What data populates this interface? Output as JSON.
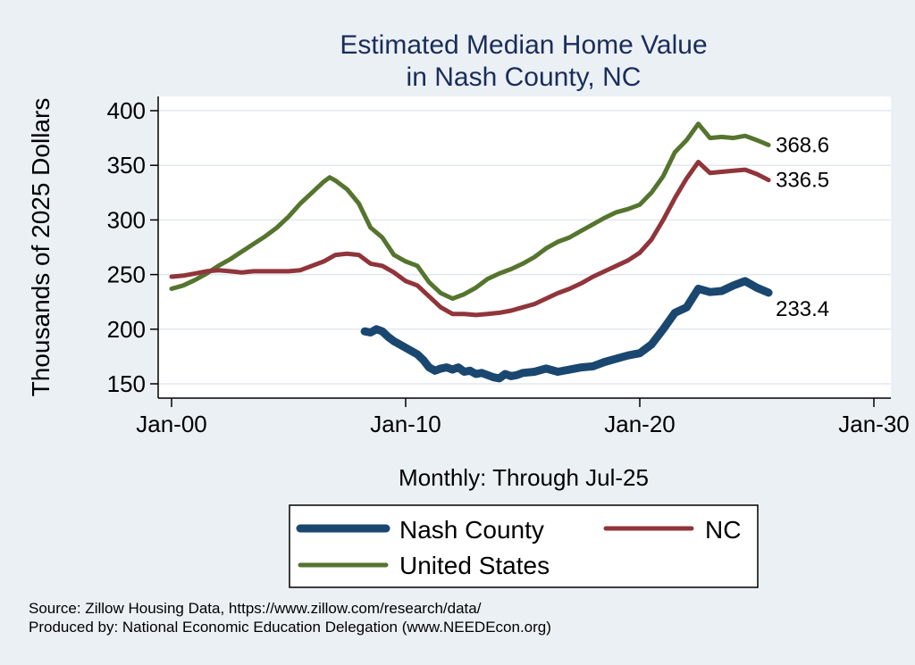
{
  "chart_data": {
    "type": "line",
    "title": [
      "Estimated Median Home Value",
      "in Nash County, NC"
    ],
    "ylabel": "Thousands of 2025 Dollars",
    "xlabel": "Monthly: Through Jul-25",
    "ylim": [
      140,
      410
    ],
    "xlim": [
      "2000-01",
      "2030-01"
    ],
    "y_ticks": [
      150,
      200,
      250,
      300,
      350,
      400
    ],
    "x_ticks": [
      {
        "date": "2000-01",
        "label": "Jan-00"
      },
      {
        "date": "2010-01",
        "label": "Jan-10"
      },
      {
        "date": "2020-01",
        "label": "Jan-20"
      },
      {
        "date": "2030-01",
        "label": "Jan-30"
      }
    ],
    "grid": true,
    "legend_placement": "bottom",
    "series": [
      {
        "name": "Nash County",
        "color": "#1a476f",
        "end_label": "233.4",
        "points": [
          [
            "2008-04",
            198
          ],
          [
            "2008-07",
            197
          ],
          [
            "2008-10",
            200
          ],
          [
            "2009-01",
            198
          ],
          [
            "2009-04",
            193
          ],
          [
            "2009-07",
            189
          ],
          [
            "2009-10",
            186
          ],
          [
            "2010-01",
            183
          ],
          [
            "2010-04",
            180
          ],
          [
            "2010-07",
            177
          ],
          [
            "2010-10",
            172
          ],
          [
            "2011-01",
            165
          ],
          [
            "2011-04",
            162
          ],
          [
            "2011-07",
            164
          ],
          [
            "2011-10",
            165
          ],
          [
            "2012-01",
            163
          ],
          [
            "2012-04",
            165
          ],
          [
            "2012-07",
            161
          ],
          [
            "2012-10",
            162
          ],
          [
            "2013-01",
            159
          ],
          [
            "2013-04",
            160
          ],
          [
            "2013-07",
            158
          ],
          [
            "2013-10",
            156
          ],
          [
            "2014-01",
            155
          ],
          [
            "2014-04",
            159
          ],
          [
            "2014-07",
            157
          ],
          [
            "2014-10",
            158
          ],
          [
            "2015-01",
            160
          ],
          [
            "2015-07",
            161
          ],
          [
            "2016-01",
            164
          ],
          [
            "2016-07",
            161
          ],
          [
            "2017-01",
            163
          ],
          [
            "2017-07",
            165
          ],
          [
            "2018-01",
            166
          ],
          [
            "2018-07",
            170
          ],
          [
            "2019-01",
            173
          ],
          [
            "2019-07",
            176
          ],
          [
            "2020-01",
            178
          ],
          [
            "2020-07",
            186
          ],
          [
            "2021-01",
            200
          ],
          [
            "2021-07",
            215
          ],
          [
            "2022-01",
            220
          ],
          [
            "2022-07",
            237
          ],
          [
            "2023-01",
            234
          ],
          [
            "2023-07",
            235
          ],
          [
            "2024-01",
            240
          ],
          [
            "2024-07",
            244
          ],
          [
            "2025-01",
            238
          ],
          [
            "2025-07",
            233.4
          ]
        ]
      },
      {
        "name": "NC",
        "color": "#90353b",
        "end_label": "336.5",
        "points": [
          [
            "2000-01",
            248
          ],
          [
            "2000-07",
            249
          ],
          [
            "2001-01",
            251
          ],
          [
            "2001-07",
            253
          ],
          [
            "2002-01",
            254
          ],
          [
            "2002-07",
            253
          ],
          [
            "2003-01",
            252
          ],
          [
            "2003-07",
            253
          ],
          [
            "2004-01",
            253
          ],
          [
            "2004-07",
            253
          ],
          [
            "2005-01",
            253
          ],
          [
            "2005-07",
            254
          ],
          [
            "2006-01",
            258
          ],
          [
            "2006-07",
            262
          ],
          [
            "2007-01",
            268
          ],
          [
            "2007-07",
            269
          ],
          [
            "2008-01",
            268
          ],
          [
            "2008-07",
            260
          ],
          [
            "2009-01",
            258
          ],
          [
            "2009-07",
            252
          ],
          [
            "2010-01",
            244
          ],
          [
            "2010-07",
            240
          ],
          [
            "2011-01",
            230
          ],
          [
            "2011-07",
            220
          ],
          [
            "2012-01",
            214
          ],
          [
            "2012-07",
            214
          ],
          [
            "2013-01",
            213
          ],
          [
            "2013-07",
            214
          ],
          [
            "2014-01",
            215
          ],
          [
            "2014-07",
            217
          ],
          [
            "2015-01",
            220
          ],
          [
            "2015-07",
            223
          ],
          [
            "2016-01",
            228
          ],
          [
            "2016-07",
            233
          ],
          [
            "2017-01",
            237
          ],
          [
            "2017-07",
            242
          ],
          [
            "2018-01",
            248
          ],
          [
            "2018-07",
            253
          ],
          [
            "2019-01",
            258
          ],
          [
            "2019-07",
            263
          ],
          [
            "2020-01",
            270
          ],
          [
            "2020-07",
            282
          ],
          [
            "2021-01",
            300
          ],
          [
            "2021-07",
            320
          ],
          [
            "2022-01",
            338
          ],
          [
            "2022-07",
            353
          ],
          [
            "2023-01",
            343
          ],
          [
            "2023-07",
            344
          ],
          [
            "2024-01",
            345
          ],
          [
            "2024-07",
            346
          ],
          [
            "2025-01",
            342
          ],
          [
            "2025-07",
            336.5
          ]
        ]
      },
      {
        "name": "United States",
        "color": "#55752f",
        "end_label": "368.6",
        "points": [
          [
            "2000-01",
            237
          ],
          [
            "2000-07",
            240
          ],
          [
            "2001-01",
            245
          ],
          [
            "2001-07",
            251
          ],
          [
            "2002-01",
            258
          ],
          [
            "2002-07",
            264
          ],
          [
            "2003-01",
            271
          ],
          [
            "2003-07",
            278
          ],
          [
            "2004-01",
            285
          ],
          [
            "2004-07",
            293
          ],
          [
            "2005-01",
            303
          ],
          [
            "2005-07",
            315
          ],
          [
            "2006-01",
            325
          ],
          [
            "2006-07",
            335
          ],
          [
            "2006-10",
            339
          ],
          [
            "2007-01",
            336
          ],
          [
            "2007-07",
            328
          ],
          [
            "2008-01",
            315
          ],
          [
            "2008-07",
            293
          ],
          [
            "2009-01",
            284
          ],
          [
            "2009-07",
            268
          ],
          [
            "2010-01",
            262
          ],
          [
            "2010-07",
            258
          ],
          [
            "2011-01",
            243
          ],
          [
            "2011-07",
            233
          ],
          [
            "2012-01",
            228
          ],
          [
            "2012-07",
            232
          ],
          [
            "2013-01",
            238
          ],
          [
            "2013-07",
            246
          ],
          [
            "2014-01",
            251
          ],
          [
            "2014-07",
            255
          ],
          [
            "2015-01",
            260
          ],
          [
            "2015-07",
            266
          ],
          [
            "2016-01",
            274
          ],
          [
            "2016-07",
            280
          ],
          [
            "2017-01",
            284
          ],
          [
            "2017-07",
            290
          ],
          [
            "2018-01",
            296
          ],
          [
            "2018-07",
            302
          ],
          [
            "2019-01",
            307
          ],
          [
            "2019-07",
            310
          ],
          [
            "2020-01",
            314
          ],
          [
            "2020-07",
            325
          ],
          [
            "2021-01",
            340
          ],
          [
            "2021-07",
            362
          ],
          [
            "2022-01",
            373
          ],
          [
            "2022-07",
            388
          ],
          [
            "2023-01",
            375
          ],
          [
            "2023-07",
            376
          ],
          [
            "2024-01",
            375
          ],
          [
            "2024-07",
            377
          ],
          [
            "2025-01",
            373
          ],
          [
            "2025-07",
            368.6
          ]
        ]
      }
    ]
  },
  "source_lines": [
    "Source: Zillow Housing Data, https://www.zillow.com/research/data/",
    "Produced by: National Economic Education Delegation (www.NEEDEcon.org)"
  ]
}
